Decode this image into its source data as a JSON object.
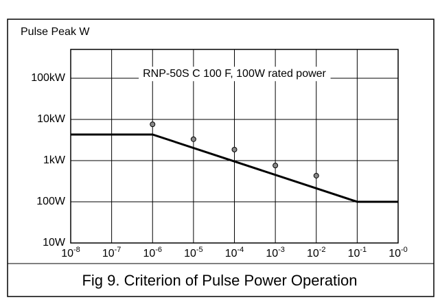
{
  "chart_data": {
    "type": "line",
    "ylabel": "Pulse Peak W",
    "annotation": "RNP-50S C 100 F, 100W rated power",
    "caption": "Fig 9. Criterion of Pulse Power Operation",
    "xscale": "log",
    "yscale": "log",
    "grid": true,
    "xlim": [
      1e-08,
      1
    ],
    "ylim": [
      10,
      500000
    ],
    "xticks": [
      {
        "value": 1e-08,
        "label": "10",
        "sup": "-8"
      },
      {
        "value": 1e-07,
        "label": "10",
        "sup": "-7"
      },
      {
        "value": 1e-06,
        "label": "10",
        "sup": "-6"
      },
      {
        "value": 1e-05,
        "label": "10",
        "sup": "-5"
      },
      {
        "value": 0.0001,
        "label": "10",
        "sup": "-4"
      },
      {
        "value": 0.001,
        "label": "10",
        "sup": "-3"
      },
      {
        "value": 0.01,
        "label": "10",
        "sup": "-2"
      },
      {
        "value": 0.1,
        "label": "10",
        "sup": "-1"
      },
      {
        "value": 1,
        "label": "10",
        "sup": "-0"
      }
    ],
    "yticks": [
      {
        "value": 10,
        "label": "10W"
      },
      {
        "value": 100,
        "label": "100W"
      },
      {
        "value": 1000,
        "label": "1kW"
      },
      {
        "value": 10000,
        "label": "10kW"
      },
      {
        "value": 100000,
        "label": "100kW"
      }
    ],
    "series": [
      {
        "type": "line",
        "color": "#000000",
        "x": [
          1e-08,
          1e-06,
          0.1,
          1
        ],
        "values": [
          4300,
          4300,
          100,
          100
        ]
      },
      {
        "type": "scatter",
        "color": "#888888",
        "x": [
          1e-06,
          1e-05,
          0.0001,
          0.001,
          0.01
        ],
        "values": [
          7600,
          3300,
          1850,
          760,
          430
        ]
      }
    ]
  }
}
